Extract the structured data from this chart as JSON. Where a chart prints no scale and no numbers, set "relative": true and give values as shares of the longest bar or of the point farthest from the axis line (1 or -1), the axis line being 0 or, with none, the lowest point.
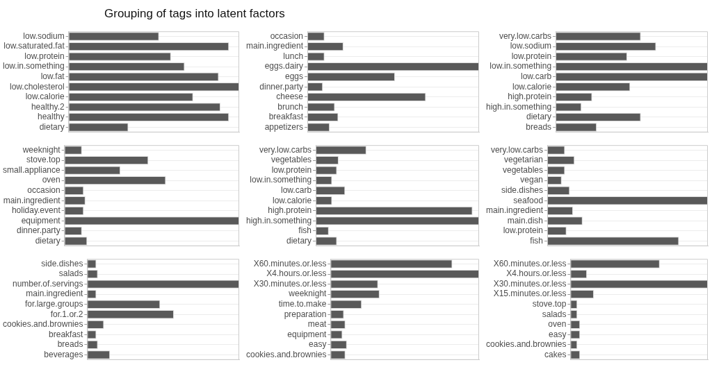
{
  "chart_data": [
    {
      "type": "bar",
      "title": "Grouping of tags into latent factors",
      "orientation": "horizontal",
      "relative": true,
      "grid": true,
      "legend": false,
      "categories": [
        "low.sodium",
        "low.saturated.fat",
        "low.protein",
        "low.in.something",
        "low.fat",
        "low.cholesterol",
        "low.calorie",
        "healthy.2",
        "healthy",
        "dietary"
      ],
      "values": [
        0.53,
        0.94,
        0.6,
        0.68,
        0.88,
        1,
        0.73,
        0.89,
        0.94,
        0.35
      ],
      "color": "#595959"
    },
    {
      "type": "bar",
      "orientation": "horizontal",
      "relative": true,
      "grid": true,
      "legend": false,
      "categories": [
        "occasion",
        "main.ingredient",
        "lunch",
        "eggs.dairy",
        "eggs",
        "dinner.party",
        "cheese",
        "brunch",
        "breakfast",
        "appetizers"
      ],
      "values": [
        0.1,
        0.21,
        0.1,
        1,
        0.51,
        0.09,
        0.69,
        0.16,
        0.18,
        0.13
      ],
      "color": "#595959"
    },
    {
      "type": "bar",
      "orientation": "horizontal",
      "relative": true,
      "grid": true,
      "legend": false,
      "categories": [
        "very.low.carbs",
        "low.sodium",
        "low.protein",
        "low.in.something",
        "low.carb",
        "low.calorie",
        "high.protein",
        "high.in.something",
        "dietary",
        "breads"
      ],
      "values": [
        0.56,
        0.66,
        0.47,
        1,
        1,
        0.49,
        0.24,
        0.17,
        0.56,
        0.27
      ],
      "color": "#595959"
    },
    {
      "type": "bar",
      "orientation": "horizontal",
      "relative": true,
      "grid": true,
      "legend": false,
      "categories": [
        "weeknight",
        "stove.top",
        "small.appliance",
        "oven",
        "occasion",
        "main.ingredient",
        "holiday.event",
        "equipment",
        "dinner.party",
        "dietary"
      ],
      "values": [
        0.1,
        0.48,
        0.32,
        0.58,
        0.11,
        0.12,
        0.11,
        1,
        0.1,
        0.13
      ],
      "color": "#595959"
    },
    {
      "type": "bar",
      "orientation": "horizontal",
      "relative": true,
      "grid": true,
      "legend": false,
      "categories": [
        "very.low.carbs",
        "vegetables",
        "low.protein",
        "low.in.something",
        "low.carb",
        "low.calorie",
        "high.protein",
        "high.in.something",
        "fish",
        "dietary"
      ],
      "values": [
        0.31,
        0.14,
        0.13,
        0.1,
        0.18,
        0.1,
        0.96,
        1,
        0.08,
        0.13
      ],
      "color": "#595959"
    },
    {
      "type": "bar",
      "orientation": "horizontal",
      "relative": true,
      "grid": true,
      "legend": false,
      "categories": [
        "very.low.carbs",
        "vegetarian",
        "vegetables",
        "vegan",
        "side.dishes",
        "seafood",
        "main.ingredient",
        "main.dish",
        "low.protein",
        "fish"
      ],
      "values": [
        0.11,
        0.17,
        0.11,
        0.09,
        0.14,
        1,
        0.16,
        0.22,
        0.12,
        0.82
      ],
      "color": "#595959"
    },
    {
      "type": "bar",
      "orientation": "horizontal",
      "relative": true,
      "grid": true,
      "legend": false,
      "categories": [
        "side.dishes",
        "salads",
        "number.of.servings",
        "main.ingredient",
        "for.large.groups",
        "for.1.or.2",
        "cookies.and.brownies",
        "breakfast",
        "breads",
        "beverages"
      ],
      "values": [
        0.06,
        0.07,
        1,
        0.06,
        0.48,
        0.57,
        0.11,
        0.06,
        0.07,
        0.15
      ],
      "color": "#595959"
    },
    {
      "type": "bar",
      "orientation": "horizontal",
      "relative": true,
      "grid": true,
      "legend": false,
      "categories": [
        "X60.minutes.or.less",
        "X4.hours.or.less",
        "X30.minutes.or.less",
        "weeknight",
        "time.to.make",
        "preparation",
        "meat",
        "equipment",
        "easy",
        "cookies.and.brownies"
      ],
      "values": [
        0.82,
        1,
        0.32,
        0.33,
        0.21,
        0.09,
        0.1,
        0.08,
        0.11,
        0.1
      ],
      "color": "#595959"
    },
    {
      "type": "bar",
      "orientation": "horizontal",
      "relative": true,
      "grid": true,
      "legend": false,
      "categories": [
        "X60.minutes.or.less",
        "X4.hours.or.less",
        "X30.minutes.or.less",
        "X15.minutes.or.less",
        "stove.top",
        "salads",
        "oven",
        "easy",
        "cookies.and.brownies",
        "cakes"
      ],
      "values": [
        0.65,
        0.12,
        1,
        0.17,
        0.05,
        0.05,
        0.07,
        0.07,
        0.05,
        0.07
      ],
      "color": "#595959"
    }
  ]
}
